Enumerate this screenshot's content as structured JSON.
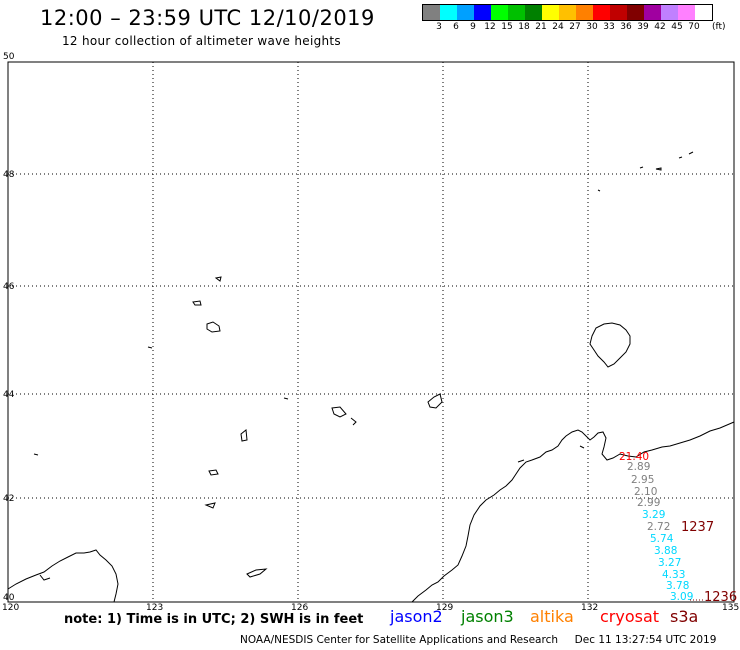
{
  "header": {
    "title": "12:00 – 23:59 UTC 12/10/2019",
    "subtitle": "12 hour collection of altimeter wave heights"
  },
  "legend": {
    "colors": [
      "#808080",
      "#00ffff",
      "#00a0ff",
      "#0000ff",
      "#00ff00",
      "#00c000",
      "#008000",
      "#ffff00",
      "#ffc000",
      "#ff8000",
      "#ff0000",
      "#c00000",
      "#800000",
      "#a000a0",
      "#c080ff",
      "#ff80ff",
      "#ffffff"
    ],
    "labels": [
      "3",
      "6",
      "9",
      "12",
      "15",
      "18",
      "21",
      "24",
      "27",
      "30",
      "33",
      "36",
      "39",
      "42",
      "45",
      "70"
    ],
    "unit": "(ft)"
  },
  "map": {
    "lat_labels": [
      "50",
      "48",
      "46",
      "44",
      "42",
      "40"
    ],
    "lon_labels": [
      "120",
      "123",
      "126",
      "129",
      "132",
      "135"
    ],
    "measurements": [
      {
        "text": "21.40",
        "color": "#ff0000"
      },
      {
        "text": "2.89",
        "color": "#808080"
      },
      {
        "text": "2.95",
        "color": "#808080"
      },
      {
        "text": "2.10",
        "color": "#808080"
      },
      {
        "text": "2.99",
        "color": "#808080"
      },
      {
        "text": "3.29",
        "color": "#00d8ff"
      },
      {
        "text": "2.72",
        "color": "#808080"
      },
      {
        "text": "5.74",
        "color": "#00d8ff"
      },
      {
        "text": "3.88",
        "color": "#00d8ff"
      },
      {
        "text": "3.27",
        "color": "#00d8ff"
      },
      {
        "text": "4.33",
        "color": "#00d8ff"
      },
      {
        "text": "3.78",
        "color": "#00d8ff"
      },
      {
        "text": "3.09",
        "color": "#00d8ff"
      }
    ],
    "pass_times": [
      {
        "text": "1237",
        "color": "#800000"
      },
      {
        "text": "1236",
        "color": "#800000"
      }
    ]
  },
  "footer": {
    "note": "note: 1) Time is in UTC; 2) SWH is in feet",
    "satellites": [
      {
        "name": "jason2",
        "color": "#0000ff"
      },
      {
        "name": "jason3",
        "color": "#008000"
      },
      {
        "name": "altika",
        "color": "#ff8000"
      },
      {
        "name": "cryosat",
        "color": "#ff0000"
      },
      {
        "name": "s3a",
        "color": "#800000"
      }
    ],
    "credit": "NOAA/NESDIS Center for Satellite Applications and Research     Dec 11 13:27:54 UTC 2019"
  }
}
